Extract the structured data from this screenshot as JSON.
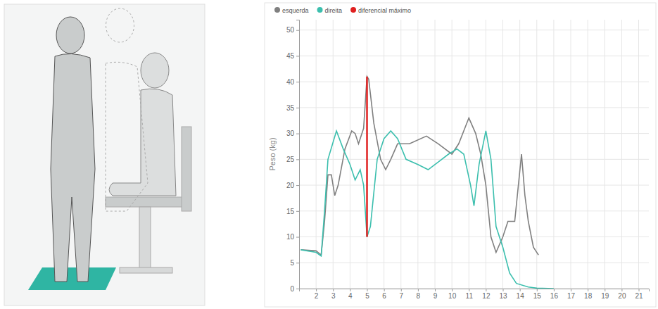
{
  "chart_data": {
    "type": "line",
    "y_label": "Peso (kg)",
    "xlim": [
      1,
      21.6
    ],
    "xticks": [
      2,
      3,
      4,
      5,
      6,
      7,
      8,
      9,
      10,
      11,
      12,
      13,
      14,
      15,
      16,
      17,
      18,
      19,
      20,
      21
    ],
    "ylim": [
      0,
      52
    ],
    "yticks": [
      0,
      5,
      10,
      15,
      20,
      25,
      30,
      35,
      40,
      45,
      50
    ],
    "grid": true,
    "legend": "top-left",
    "series": [
      {
        "name": "esquerda",
        "color": "#808080",
        "x": [
          1.1,
          2.0,
          2.3,
          2.5,
          2.7,
          2.9,
          3.1,
          3.3,
          3.7,
          4.1,
          4.3,
          4.5,
          4.8,
          5.0,
          5.1,
          5.4,
          5.8,
          6.1,
          6.4,
          6.8,
          7.5,
          8.5,
          9.2,
          10.0,
          10.4,
          11.0,
          11.4,
          11.7,
          12.0,
          12.3,
          12.6,
          13.0,
          13.3,
          13.7,
          14.1,
          14.3,
          14.5,
          14.8,
          15.0,
          15.1
        ],
        "values": [
          7.5,
          7.3,
          6.5,
          13,
          22,
          22,
          18,
          20,
          27,
          30.5,
          30,
          28,
          31,
          41,
          40.5,
          32,
          25,
          23,
          25,
          28,
          28,
          29.5,
          28,
          26,
          28,
          33,
          30,
          26,
          20,
          10,
          7,
          10,
          13,
          13,
          26,
          18,
          13,
          8,
          7,
          6.5
        ]
      },
      {
        "name": "direita",
        "color": "#3cbfae",
        "x": [
          1.1,
          2.0,
          2.3,
          2.5,
          2.7,
          3.2,
          3.6,
          4.0,
          4.3,
          4.6,
          4.8,
          5.0,
          5.2,
          5.6,
          6.0,
          6.4,
          6.8,
          7.3,
          8.0,
          8.6,
          9.2,
          9.8,
          10.3,
          10.7,
          11.1,
          11.3,
          11.6,
          12.0,
          12.3,
          12.6,
          13.0,
          13.4,
          13.8,
          14.5,
          15.0,
          16.0
        ],
        "values": [
          7.5,
          7,
          6.3,
          15,
          25,
          30.5,
          27,
          24,
          21,
          23,
          20,
          10,
          12,
          25,
          29,
          30.5,
          29,
          25,
          24,
          23,
          24.5,
          26,
          27,
          26,
          20,
          16,
          24,
          30.5,
          25,
          12,
          8,
          3,
          1,
          0.3,
          0.1,
          0
        ]
      },
      {
        "name": "diferencial máximo",
        "color": "#e02020",
        "x": [
          5.0,
          5.0
        ],
        "values": [
          10,
          41
        ]
      }
    ]
  }
}
